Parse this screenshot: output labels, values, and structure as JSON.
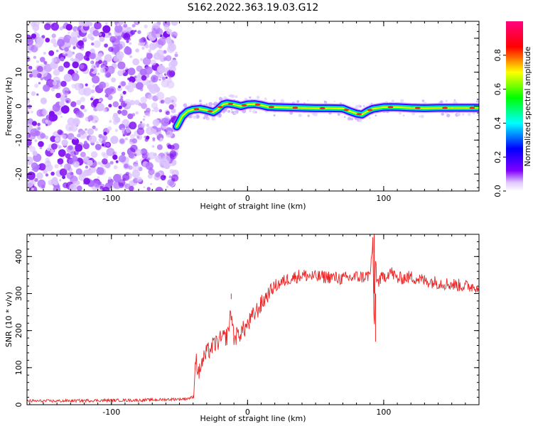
{
  "figure": {
    "title": "S162.2022.363.19.03.G12"
  },
  "chart_data": [
    {
      "type": "heatmap",
      "xlabel": "Height of straight line (km)",
      "ylabel": "Frequency (Hz)",
      "xlim": [
        -162,
        170
      ],
      "ylim": [
        -25,
        25
      ],
      "xticks": [
        -100,
        0,
        100
      ],
      "yticks": [
        -20,
        -10,
        0,
        10,
        20
      ],
      "xtick_labels": [
        "-100",
        "0",
        "100"
      ],
      "ytick_labels": [
        "-20",
        "-10",
        "0",
        "10",
        "20"
      ],
      "colorbar": {
        "label": "Normalized spectral amplitude",
        "range": [
          0,
          1
        ],
        "ticks": [
          0.0,
          0.2,
          0.4,
          0.6,
          0.8
        ],
        "tick_labels": [
          "0.0",
          "0.2",
          "0.4",
          "0.6",
          "0.8"
        ],
        "colors": [
          "#ffffff",
          "#8000ff",
          "#0000ff",
          "#00ffff",
          "#00ff00",
          "#ffff00",
          "#ff0000",
          "#ff0080"
        ]
      },
      "noise_region_x": [
        -162,
        -52
      ],
      "signal_track": {
        "x": [
          -52,
          -48,
          -44,
          -40,
          -35,
          -30,
          -25,
          -22,
          -18,
          -15,
          -10,
          -5,
          0,
          5,
          10,
          15,
          20,
          30,
          40,
          50,
          60,
          70,
          75,
          80,
          84,
          88,
          92,
          100,
          110,
          120,
          130,
          140,
          150,
          160,
          170
        ],
        "y": [
          -6,
          -3,
          -1.5,
          -1,
          -0.8,
          -1.2,
          -1.8,
          -1,
          0.5,
          0.8,
          0.5,
          0,
          0.5,
          0.6,
          0.3,
          -0.2,
          -0.3,
          -0.4,
          -0.5,
          -0.6,
          -0.6,
          -0.7,
          -1.5,
          -2.2,
          -2.5,
          -1.5,
          -0.8,
          -0.3,
          -0.3,
          -0.5,
          -0.6,
          -0.5,
          -0.5,
          -0.5,
          -0.5
        ]
      }
    },
    {
      "type": "line",
      "xlabel": "Height of straight line (km)",
      "ylabel": "SNR (10 * v/v)",
      "xlim": [
        -162,
        170
      ],
      "ylim": [
        0,
        460
      ],
      "xticks": [
        -100,
        0,
        100
      ],
      "yticks": [
        0,
        100,
        200,
        300,
        400
      ],
      "xtick_labels": [
        "-100",
        "0",
        "100"
      ],
      "ytick_labels": [
        "0",
        "100",
        "200",
        "300",
        "400"
      ],
      "series": [
        {
          "color": "#ee2222",
          "x": [
            -162,
            -140,
            -120,
            -100,
            -80,
            -60,
            -45,
            -40,
            -38,
            -36,
            -34,
            -30,
            -25,
            -20,
            -15,
            -12,
            -10,
            -5,
            0,
            5,
            10,
            15,
            20,
            25,
            30,
            40,
            50,
            60,
            70,
            80,
            85,
            90,
            92,
            93,
            94,
            95,
            100,
            105,
            110,
            120,
            130,
            140,
            150,
            160,
            170
          ],
          "y": [
            10,
            10,
            11,
            12,
            12,
            14,
            16,
            20,
            130,
            80,
            110,
            140,
            160,
            175,
            185,
            250,
            180,
            195,
            215,
            245,
            270,
            300,
            320,
            330,
            340,
            350,
            345,
            345,
            340,
            345,
            345,
            350,
            440,
            180,
            400,
            330,
            345,
            360,
            340,
            345,
            335,
            330,
            325,
            320,
            320
          ]
        }
      ],
      "highlights": [
        {
          "x": -12,
          "y": 285
        },
        {
          "x": 93,
          "y": 460
        },
        {
          "x": 94,
          "y": 170
        }
      ]
    }
  ]
}
